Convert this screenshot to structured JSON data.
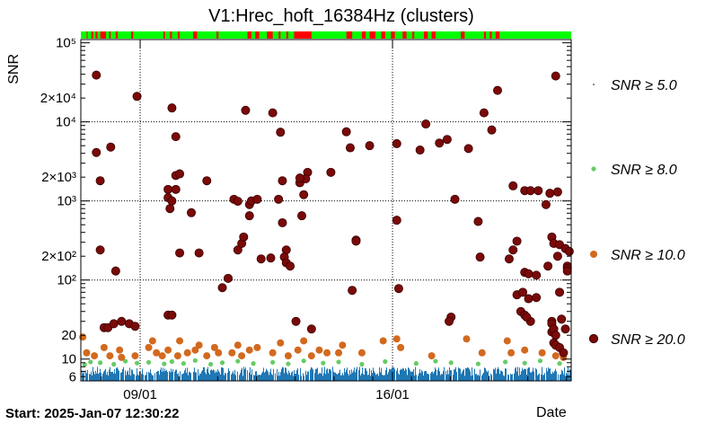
{
  "chart_data": {
    "type": "scatter",
    "title": "V1:Hrec_hoft_16384Hz (clusters)",
    "ylabel": "SNR",
    "xlabel": "Date",
    "y_scale": "log",
    "ylim": [
      5.3,
      110000
    ],
    "xlim_days_from_start": [
      -0.05,
      12.6
    ],
    "x_ticks": [
      {
        "label": "09/01",
        "day": 1.48
      },
      {
        "label": "16/01",
        "day": 7.99
      }
    ],
    "y_ticks": [
      {
        "label": "6",
        "value": 6
      },
      {
        "label": "10",
        "value": 10
      },
      {
        "label": "20",
        "value": 20
      },
      {
        "label": "10²",
        "value": 100
      },
      {
        "label": "2×10²",
        "value": 200
      },
      {
        "label": "10³",
        "value": 1000
      },
      {
        "label": "2×10³",
        "value": 2000
      },
      {
        "label": "10⁴",
        "value": 10000
      },
      {
        "label": "2×10⁴",
        "value": 20000
      },
      {
        "label": "10⁵",
        "value": 100000
      }
    ],
    "grid": true,
    "legend_position": "right",
    "series": [
      {
        "name": "SNR ≥ 5.0",
        "legend_label": "SNR ≥ 5.0",
        "color": "#1f77b4",
        "marker": "dot",
        "band": [
          5.3,
          8.0
        ],
        "note": "dense continuous band"
      },
      {
        "name": "SNR ≥ 8.0",
        "legend_label": "SNR ≥ 8.0",
        "color": "#66cc66",
        "marker": "small-circle",
        "points": [
          [
            0.05,
            8.5
          ],
          [
            0.2,
            9.2
          ],
          [
            0.45,
            9.0
          ],
          [
            0.8,
            8.6
          ],
          [
            1.1,
            9.4
          ],
          [
            1.4,
            8.9
          ],
          [
            1.7,
            9.1
          ],
          [
            2.1,
            8.7
          ],
          [
            2.3,
            9.3
          ],
          [
            2.6,
            8.8
          ],
          [
            2.9,
            9.6
          ],
          [
            3.3,
            8.6
          ],
          [
            3.6,
            9.0
          ],
          [
            4.0,
            9.4
          ],
          [
            4.4,
            8.8
          ],
          [
            4.9,
            9.1
          ],
          [
            5.3,
            8.7
          ],
          [
            5.7,
            9.5
          ],
          [
            6.2,
            8.9
          ],
          [
            6.6,
            9.2
          ],
          [
            7.2,
            8.6
          ],
          [
            7.8,
            9.3
          ],
          [
            8.6,
            8.8
          ],
          [
            9.1,
            9.4
          ],
          [
            9.5,
            9.0
          ],
          [
            10.2,
            8.7
          ],
          [
            10.9,
            9.2
          ],
          [
            11.4,
            8.9
          ],
          [
            11.8,
            9.5
          ],
          [
            12.3,
            8.8
          ]
        ]
      },
      {
        "name": "SNR ≥ 10.0",
        "legend_label": "SNR ≥ 10.0",
        "color": "#d2691e",
        "marker": "circle",
        "points": [
          [
            0.0,
            19
          ],
          [
            0.1,
            12
          ],
          [
            0.3,
            11
          ],
          [
            0.55,
            14
          ],
          [
            0.7,
            11
          ],
          [
            0.95,
            13
          ],
          [
            1.0,
            10.5
          ],
          [
            1.35,
            11
          ],
          [
            1.7,
            14
          ],
          [
            1.8,
            17
          ],
          [
            1.9,
            12
          ],
          [
            2.05,
            11
          ],
          [
            2.2,
            13
          ],
          [
            2.45,
            11
          ],
          [
            2.5,
            17
          ],
          [
            2.7,
            12
          ],
          [
            2.9,
            13
          ],
          [
            3.0,
            15
          ],
          [
            3.2,
            11
          ],
          [
            3.4,
            14
          ],
          [
            3.5,
            12
          ],
          [
            3.85,
            12
          ],
          [
            4.0,
            15
          ],
          [
            4.1,
            11
          ],
          [
            4.3,
            13
          ],
          [
            4.5,
            14
          ],
          [
            4.9,
            12
          ],
          [
            5.1,
            16
          ],
          [
            5.3,
            11
          ],
          [
            5.55,
            13
          ],
          [
            5.7,
            17
          ],
          [
            5.9,
            11
          ],
          [
            6.1,
            13
          ],
          [
            6.3,
            12
          ],
          [
            6.6,
            12
          ],
          [
            6.7,
            15
          ],
          [
            7.2,
            12
          ],
          [
            7.75,
            17
          ],
          [
            8.1,
            18
          ],
          [
            8.2,
            14
          ],
          [
            9.0,
            11
          ],
          [
            9.9,
            18
          ],
          [
            10.3,
            12
          ],
          [
            10.95,
            17
          ],
          [
            11.05,
            12
          ],
          [
            11.4,
            13
          ],
          [
            11.85,
            12
          ],
          [
            12.2,
            11
          ],
          [
            12.3,
            14
          ],
          [
            12.4,
            10.5
          ]
        ]
      },
      {
        "name": "SNR ≥ 20.0",
        "legend_label": "SNR ≥ 20.0",
        "color": "#7a0a08",
        "marker": "circle",
        "points": [
          [
            0.35,
            39000
          ],
          [
            0.35,
            4100
          ],
          [
            0.45,
            1800
          ],
          [
            0.45,
            240
          ],
          [
            0.55,
            25
          ],
          [
            0.65,
            25
          ],
          [
            0.72,
            4800
          ],
          [
            0.8,
            28
          ],
          [
            0.85,
            130
          ],
          [
            1.0,
            30
          ],
          [
            1.2,
            28
          ],
          [
            1.35,
            26
          ],
          [
            1.4,
            21000
          ],
          [
            2.3,
            15000
          ],
          [
            2.2,
            1400
          ],
          [
            2.2,
            1100
          ],
          [
            2.3,
            1000
          ],
          [
            2.25,
            800
          ],
          [
            2.4,
            6500
          ],
          [
            2.4,
            2100
          ],
          [
            2.4,
            1400
          ],
          [
            2.5,
            2200
          ],
          [
            2.2,
            36
          ],
          [
            2.3,
            36
          ],
          [
            2.5,
            220
          ],
          [
            2.8,
            710
          ],
          [
            3.0,
            220
          ],
          [
            3.2,
            1800
          ],
          [
            3.6,
            80
          ],
          [
            3.75,
            105
          ],
          [
            3.9,
            1050
          ],
          [
            4.0,
            990
          ],
          [
            4.0,
            240
          ],
          [
            4.1,
            290
          ],
          [
            4.15,
            350
          ],
          [
            4.3,
            900
          ],
          [
            4.35,
            1000
          ],
          [
            4.3,
            650
          ],
          [
            4.5,
            1050
          ],
          [
            4.2,
            14000
          ],
          [
            4.6,
            185
          ],
          [
            4.9,
            13000
          ],
          [
            4.85,
            190
          ],
          [
            5.05,
            1050
          ],
          [
            5.1,
            7400
          ],
          [
            5.15,
            1800
          ],
          [
            5.25,
            240
          ],
          [
            5.2,
            195
          ],
          [
            5.25,
            165
          ],
          [
            5.35,
            150
          ],
          [
            5.15,
            530
          ],
          [
            5.6,
            1700
          ],
          [
            5.8,
            2300
          ],
          [
            5.75,
            1900
          ],
          [
            5.6,
            1950
          ],
          [
            5.7,
            1200
          ],
          [
            5.65,
            650
          ],
          [
            5.5,
            30
          ],
          [
            5.9,
            24
          ],
          [
            6.4,
            2300
          ],
          [
            6.9,
            4700
          ],
          [
            6.8,
            7500
          ],
          [
            6.95,
            74
          ],
          [
            7.05,
            320
          ],
          [
            7.05,
            310
          ],
          [
            7.4,
            5000
          ],
          [
            8.1,
            5300
          ],
          [
            8.15,
            78
          ],
          [
            8.1,
            570
          ],
          [
            8.7,
            4400
          ],
          [
            8.85,
            9400
          ],
          [
            9.2,
            5400
          ],
          [
            9.5,
            34
          ],
          [
            9.45,
            30
          ],
          [
            9.4,
            6000
          ],
          [
            9.6,
            1050
          ],
          [
            9.95,
            4600
          ],
          [
            10.2,
            550
          ],
          [
            10.35,
            13000
          ],
          [
            10.25,
            195
          ],
          [
            10.55,
            7900
          ],
          [
            10.7,
            25000
          ],
          [
            11.0,
            185
          ],
          [
            11.1,
            1550
          ],
          [
            11.4,
            1350
          ],
          [
            11.55,
            1350
          ],
          [
            11.75,
            1350
          ],
          [
            11.1,
            240
          ],
          [
            11.2,
            310
          ],
          [
            11.4,
            125
          ],
          [
            11.5,
            120
          ],
          [
            11.7,
            115
          ],
          [
            11.3,
            40
          ],
          [
            11.4,
            36
          ],
          [
            11.2,
            65
          ],
          [
            11.35,
            70
          ],
          [
            11.55,
            30
          ],
          [
            11.7,
            60
          ],
          [
            11.5,
            58
          ],
          [
            11.45,
            34
          ],
          [
            11.95,
            900
          ],
          [
            12.05,
            1250
          ],
          [
            12.1,
            350
          ],
          [
            12.1,
            30
          ],
          [
            12.0,
            150
          ],
          [
            12.2,
            38000
          ],
          [
            12.25,
            1300
          ],
          [
            12.15,
            290
          ],
          [
            12.3,
            280
          ],
          [
            12.25,
            200
          ],
          [
            12.45,
            250
          ],
          [
            12.5,
            150
          ],
          [
            12.55,
            230
          ],
          [
            12.3,
            70
          ],
          [
            12.35,
            32
          ],
          [
            12.1,
            28
          ],
          [
            12.1,
            22
          ],
          [
            12.15,
            24
          ],
          [
            12.2,
            20
          ],
          [
            12.15,
            16
          ],
          [
            12.2,
            15
          ],
          [
            12.3,
            14
          ],
          [
            12.4,
            12
          ],
          [
            12.5,
            140
          ],
          [
            12.5,
            130
          ],
          [
            12.45,
            24
          ]
        ]
      }
    ],
    "status_bar": {
      "colors": {
        "ok": "#00ff00",
        "bad": "#ff0000"
      },
      "segments": [
        [
          0.1,
          0.12
        ],
        [
          0.22,
          0.27
        ],
        [
          0.33,
          0.38
        ],
        [
          0.45,
          0.6
        ],
        [
          0.68,
          0.72
        ],
        [
          0.85,
          0.9
        ],
        [
          1.25,
          1.3
        ],
        [
          2.08,
          2.12
        ],
        [
          2.25,
          2.3
        ],
        [
          2.45,
          2.5
        ],
        [
          2.85,
          2.95
        ],
        [
          3.45,
          3.5
        ],
        [
          4.25,
          4.35
        ],
        [
          4.45,
          4.55
        ],
        [
          4.75,
          4.9
        ],
        [
          5.05,
          5.1
        ],
        [
          5.25,
          5.3
        ],
        [
          5.45,
          5.9
        ],
        [
          6.8,
          6.95
        ],
        [
          7.2,
          7.3
        ],
        [
          7.4,
          7.55
        ],
        [
          7.7,
          7.8
        ],
        [
          7.95,
          8.05
        ],
        [
          8.25,
          8.35
        ],
        [
          8.5,
          8.55
        ],
        [
          8.8,
          8.9
        ],
        [
          9.0,
          9.1
        ],
        [
          9.75,
          9.85
        ],
        [
          10.35,
          10.4
        ],
        [
          10.5,
          10.55
        ],
        [
          10.65,
          10.75
        ]
      ]
    },
    "footer": {
      "start": "Start: 2025-Jan-07 12:30:22",
      "date_label": "Date"
    }
  }
}
